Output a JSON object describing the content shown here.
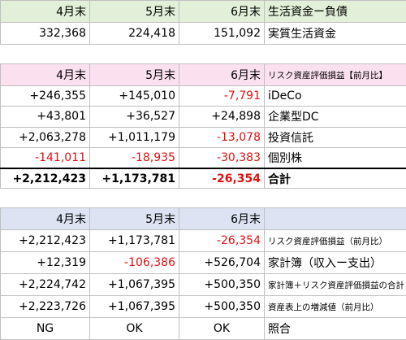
{
  "tables": [
    {
      "header": [
        "4月末",
        "5月末",
        "6月末",
        "生活資金ー負債"
      ],
      "rows": [
        [
          "332,368",
          "224,418",
          "151,092",
          "実質生活資金"
        ]
      ]
    },
    {
      "header": [
        "4月末",
        "5月末",
        "6月末",
        "リスク資産評価損益【前月比】"
      ],
      "rows": [
        [
          "+246,355",
          "+145,010",
          "-7,791",
          "iDeCo"
        ],
        [
          "+43,801",
          "+36,527",
          "+24,898",
          "企業型DC"
        ],
        [
          "+2,063,278",
          "+1,011,179",
          "-13,078",
          "投資信託"
        ],
        [
          "-141,011",
          "-18,935",
          "-30,383",
          "個別株"
        ],
        [
          "+2,212,423",
          "+1,173,781",
          "-26,354",
          "合計"
        ]
      ]
    },
    {
      "header": [
        "4月末",
        "5月末",
        "6月末"
      ],
      "rows": [
        [
          "+2,212,423",
          "+1,173,781",
          "-26,354",
          "リスク資産評価損益（前月比）"
        ],
        [
          "+12,319",
          "-106,386",
          "+526,704",
          "家計簿（収入ー支出）"
        ],
        [
          "+2,224,742",
          "+1,067,395",
          "+500,350",
          "家計簿＋リスク資産評価損益の合計"
        ],
        [
          "+2,223,726",
          "+1,067,395",
          "+500,350",
          "資産表上の増減値（前月比）"
        ],
        [
          "NG",
          "OK",
          "OK",
          "照合"
        ]
      ]
    }
  ]
}
